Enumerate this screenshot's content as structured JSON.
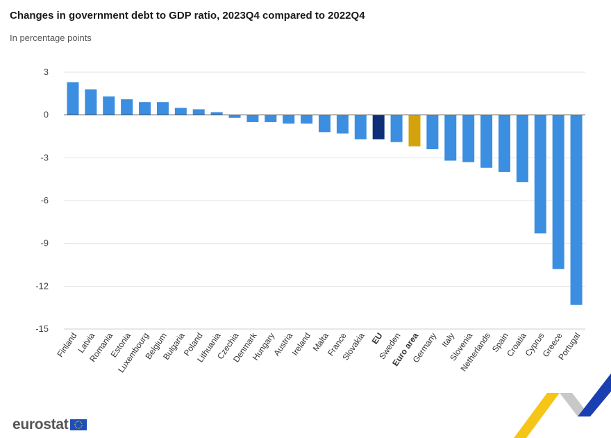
{
  "chart_data": {
    "type": "bar",
    "title": "Changes in government debt to GDP ratio, 2023Q4 compared to 2022Q4",
    "subtitle": "In percentage points",
    "xlabel": "",
    "ylabel": "",
    "ylim": [
      -15,
      3
    ],
    "yticks": [
      3,
      0,
      -3,
      -6,
      -9,
      -12,
      -15
    ],
    "grid": true,
    "categories": [
      "Finland",
      "Latvia",
      "Romania",
      "Estonia",
      "Luxembourg",
      "Belgium",
      "Bulgaria",
      "Poland",
      "Lithuania",
      "Czechia",
      "Denmark",
      "Hungary",
      "Austria",
      "Ireland",
      "Malta",
      "France",
      "Slovakia",
      "EU",
      "Sweden",
      "Euro area",
      "Germany",
      "Italy",
      "Slovenia",
      "Netherlands",
      "Spain",
      "Croatia",
      "Cyprus",
      "Greece",
      "Portugal"
    ],
    "values": [
      2.3,
      1.8,
      1.3,
      1.1,
      0.9,
      0.9,
      0.5,
      0.4,
      0.2,
      -0.2,
      -0.5,
      -0.5,
      -0.6,
      -0.6,
      -1.2,
      -1.3,
      -1.7,
      -1.7,
      -1.9,
      -2.2,
      -2.4,
      -3.2,
      -3.3,
      -3.7,
      -4.0,
      -4.7,
      -8.3,
      -10.8,
      -13.3
    ],
    "highlight": {
      "EU": "#0e2e79",
      "Euro area": "#d4a30c"
    },
    "bold_categories": [
      "EU",
      "Euro area"
    ],
    "bar_color": "#3b8ee0"
  },
  "branding": {
    "logo_text": "eurostat"
  }
}
